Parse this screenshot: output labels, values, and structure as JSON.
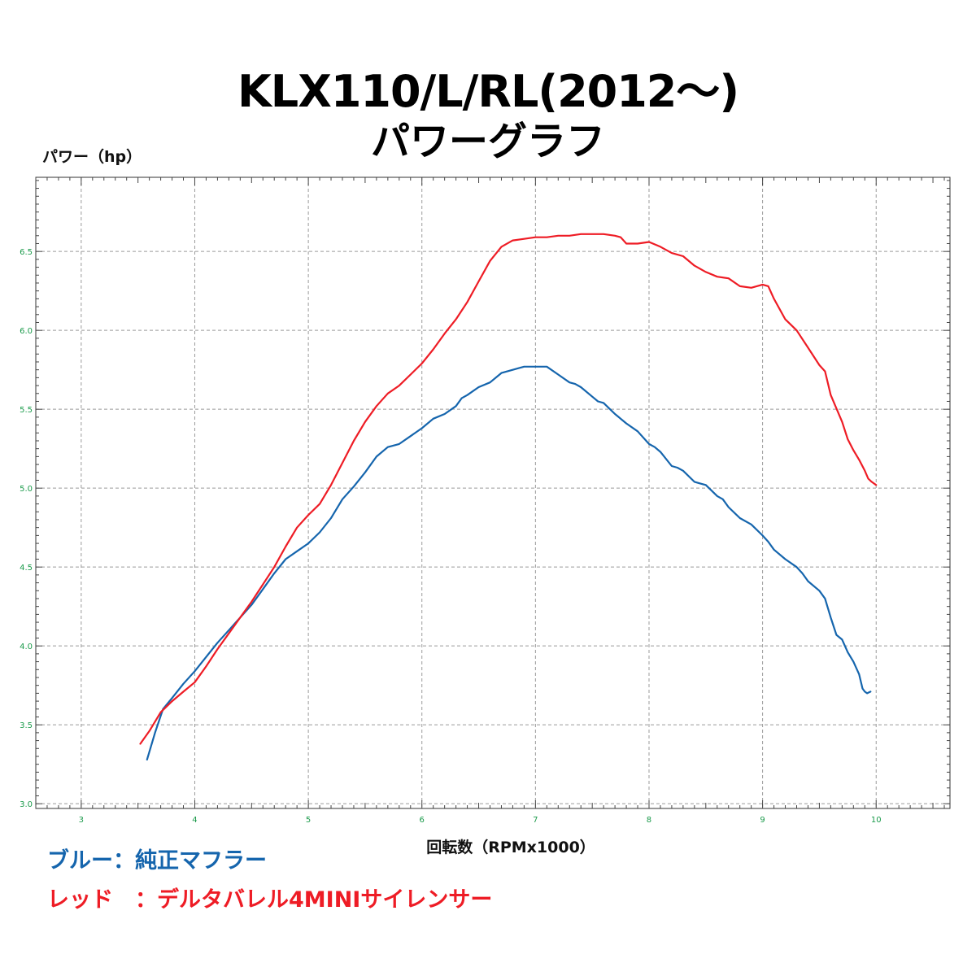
{
  "title_line1": "KLX110/L/RL(2012～)",
  "title_line2": "パワーグラフ",
  "legend": [
    {
      "label": "ブルー：純正マフラー",
      "color": "#1565ad"
    },
    {
      "label": "レッド　：デルタバレル4MINIサイレンサー",
      "color": "#ee1c25"
    }
  ],
  "chart_data": {
    "type": "line",
    "ylabel": "パワー（hp）",
    "xlabel": "回転数（RPMx1000）",
    "xlim": [
      2.6,
      10.65
    ],
    "ylim": [
      2.97,
      6.97
    ],
    "x_ticks": [
      3,
      4,
      5,
      6,
      7,
      8,
      9,
      10
    ],
    "x_tick_labels": [
      "3",
      "4",
      "5",
      "6",
      "7",
      "8",
      "9",
      "10"
    ],
    "y_ticks": [
      3.0,
      3.5,
      4.0,
      4.5,
      5.0,
      5.5,
      6.0,
      6.5
    ],
    "y_tick_labels": [
      "3.0",
      "3.5",
      "4.0",
      "4.5",
      "5.0",
      "5.5",
      "6.0",
      "6.5"
    ],
    "tick_label_color": "#1a9a4a",
    "grid": true,
    "series": [
      {
        "color": "#1565ad",
        "x": [
          3.58,
          3.65,
          3.72,
          3.8,
          3.9,
          4.0,
          4.1,
          4.2,
          4.3,
          4.4,
          4.5,
          4.6,
          4.7,
          4.8,
          4.9,
          5.0,
          5.1,
          5.2,
          5.3,
          5.4,
          5.5,
          5.6,
          5.7,
          5.8,
          5.9,
          6.0,
          6.1,
          6.2,
          6.3,
          6.35,
          6.4,
          6.5,
          6.6,
          6.7,
          6.8,
          6.9,
          7.0,
          7.1,
          7.2,
          7.3,
          7.35,
          7.4,
          7.5,
          7.55,
          7.6,
          7.7,
          7.8,
          7.9,
          8.0,
          8.05,
          8.1,
          8.2,
          8.25,
          8.3,
          8.4,
          8.45,
          8.5,
          8.6,
          8.65,
          8.7,
          8.8,
          8.9,
          9.0,
          9.05,
          9.1,
          9.2,
          9.3,
          9.35,
          9.4,
          9.5,
          9.55,
          9.6,
          9.65,
          9.7,
          9.75,
          9.8,
          9.85,
          9.88,
          9.9,
          9.92,
          9.95
        ],
        "y": [
          3.28,
          3.45,
          3.6,
          3.67,
          3.76,
          3.84,
          3.93,
          4.02,
          4.1,
          4.18,
          4.26,
          4.36,
          4.46,
          4.55,
          4.6,
          4.65,
          4.72,
          4.81,
          4.93,
          5.01,
          5.1,
          5.2,
          5.26,
          5.28,
          5.33,
          5.38,
          5.44,
          5.47,
          5.52,
          5.57,
          5.59,
          5.64,
          5.67,
          5.73,
          5.75,
          5.77,
          5.77,
          5.77,
          5.72,
          5.67,
          5.66,
          5.64,
          5.58,
          5.55,
          5.54,
          5.47,
          5.41,
          5.36,
          5.28,
          5.26,
          5.23,
          5.14,
          5.13,
          5.11,
          5.04,
          5.03,
          5.02,
          4.95,
          4.93,
          4.88,
          4.81,
          4.77,
          4.7,
          4.66,
          4.61,
          4.55,
          4.5,
          4.46,
          4.41,
          4.35,
          4.3,
          4.18,
          4.07,
          4.04,
          3.96,
          3.9,
          3.82,
          3.73,
          3.71,
          3.7,
          3.71
        ]
      },
      {
        "color": "#ee1c25",
        "x": [
          3.52,
          3.6,
          3.7,
          3.8,
          3.9,
          4.0,
          4.1,
          4.2,
          4.3,
          4.4,
          4.5,
          4.6,
          4.7,
          4.8,
          4.9,
          5.0,
          5.1,
          5.2,
          5.3,
          5.4,
          5.5,
          5.6,
          5.7,
          5.8,
          5.9,
          6.0,
          6.1,
          6.2,
          6.3,
          6.4,
          6.5,
          6.6,
          6.7,
          6.8,
          6.9,
          7.0,
          7.1,
          7.2,
          7.3,
          7.4,
          7.5,
          7.6,
          7.7,
          7.75,
          7.8,
          7.9,
          8.0,
          8.1,
          8.2,
          8.3,
          8.4,
          8.5,
          8.6,
          8.7,
          8.8,
          8.9,
          9.0,
          9.05,
          9.1,
          9.2,
          9.3,
          9.4,
          9.5,
          9.55,
          9.6,
          9.7,
          9.75,
          9.8,
          9.85,
          9.9,
          9.93,
          9.96,
          10.0
        ],
        "y": [
          3.38,
          3.46,
          3.58,
          3.65,
          3.71,
          3.77,
          3.87,
          3.98,
          4.08,
          4.18,
          4.28,
          4.39,
          4.5,
          4.63,
          4.75,
          4.83,
          4.9,
          5.02,
          5.16,
          5.3,
          5.42,
          5.52,
          5.6,
          5.65,
          5.72,
          5.79,
          5.88,
          5.98,
          6.07,
          6.18,
          6.31,
          6.44,
          6.53,
          6.57,
          6.58,
          6.59,
          6.59,
          6.6,
          6.6,
          6.61,
          6.61,
          6.61,
          6.6,
          6.59,
          6.55,
          6.55,
          6.56,
          6.53,
          6.49,
          6.47,
          6.41,
          6.37,
          6.34,
          6.33,
          6.28,
          6.27,
          6.29,
          6.28,
          6.2,
          6.07,
          6.0,
          5.89,
          5.78,
          5.74,
          5.59,
          5.42,
          5.31,
          5.24,
          5.18,
          5.11,
          5.06,
          5.04,
          5.02
        ]
      }
    ]
  }
}
